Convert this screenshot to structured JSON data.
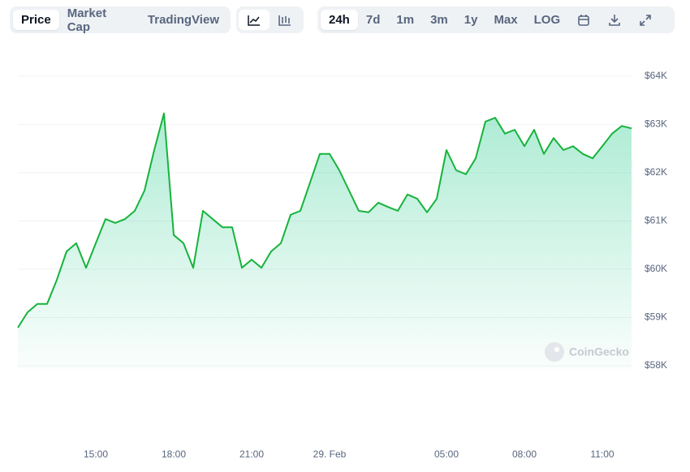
{
  "toolbar": {
    "views": [
      "Price",
      "Market Cap",
      "TradingView"
    ],
    "ranges": [
      "24h",
      "7d",
      "1m",
      "3m",
      "1y",
      "Max",
      "LOG"
    ]
  },
  "chart_data": {
    "type": "line",
    "watermark": "CoinGecko",
    "color": "#16b33c",
    "categories": [
      null,
      null,
      null,
      null,
      null,
      null,
      null,
      null,
      "15:00",
      null,
      null,
      null,
      null,
      null,
      null,
      null,
      "18:00",
      null,
      null,
      null,
      null,
      null,
      null,
      null,
      "21:00",
      null,
      null,
      null,
      null,
      null,
      null,
      null,
      "29. Feb",
      null,
      null,
      null,
      null,
      null,
      null,
      null,
      null,
      null,
      null,
      null,
      "05:00",
      null,
      null,
      null,
      null,
      null,
      null,
      null,
      "08:00",
      null,
      null,
      null,
      null,
      null,
      null,
      null,
      "11:00",
      null,
      null,
      null
    ],
    "values": [
      58790,
      59110,
      59280,
      59280,
      59780,
      60370,
      60540,
      60030,
      60540,
      61040,
      60960,
      61040,
      61210,
      61630,
      62470,
      63230,
      60710,
      60540,
      60030,
      61210,
      61040,
      60870,
      60870,
      60030,
      60200,
      60030,
      60370,
      60540,
      61130,
      61210,
      61800,
      62390,
      62390,
      62050,
      61630,
      61210,
      61180,
      61380,
      61290,
      61210,
      61550,
      61460,
      61180,
      61460,
      62470,
      62050,
      61970,
      62300,
      63060,
      63140,
      62810,
      62890,
      62550,
      62890,
      62390,
      62720,
      62470,
      62550,
      62390,
      62300,
      62550,
      62810,
      62970,
      62920
    ],
    "ylim": [
      58000,
      64000
    ],
    "yticks": [
      {
        "value": 58000,
        "label": "$58K"
      },
      {
        "value": 59000,
        "label": "$59K"
      },
      {
        "value": 60000,
        "label": "$60K"
      },
      {
        "value": 61000,
        "label": "$61K"
      },
      {
        "value": 62000,
        "label": "$62K"
      },
      {
        "value": 63000,
        "label": "$63K"
      },
      {
        "value": 64000,
        "label": "$64K"
      }
    ],
    "grid": true
  }
}
